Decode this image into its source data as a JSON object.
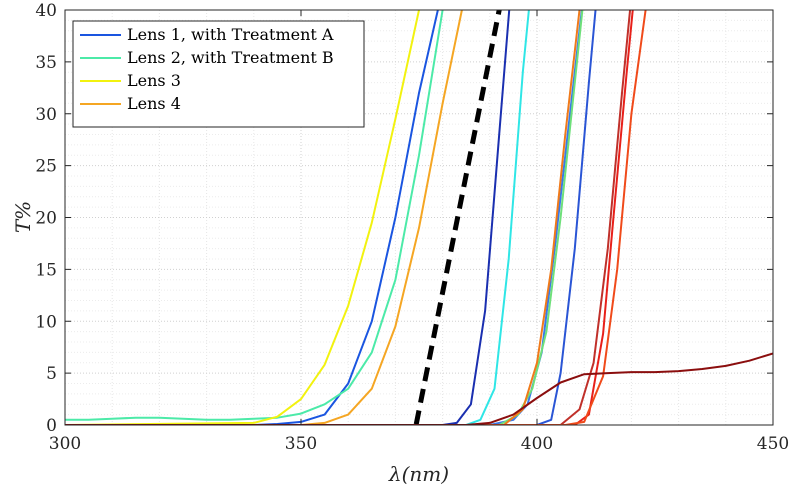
{
  "chart_data": {
    "type": "line",
    "title": "",
    "xlabel": "λ(nm)",
    "ylabel": "T%",
    "xlim": [
      300,
      450
    ],
    "ylim": [
      0,
      40
    ],
    "xticks": [
      300,
      350,
      400,
      450
    ],
    "yticks": [
      0,
      5,
      10,
      15,
      20,
      25,
      30,
      35,
      40
    ],
    "grid": "dotted major and minor",
    "legend_position": "top-left",
    "series": [
      {
        "name": "Lens 1, with Treatment A",
        "color": "#1a55e0",
        "in_legend": true,
        "x": [
          300,
          340,
          345,
          350,
          355,
          360,
          365,
          370,
          375,
          380
        ],
        "y": [
          0,
          0,
          0.1,
          0.3,
          1,
          4,
          10,
          20,
          32,
          42
        ]
      },
      {
        "name": "Lens 2, with Treatment B",
        "color": "#4ceaa8",
        "in_legend": true,
        "x": [
          300,
          305,
          310,
          315,
          320,
          325,
          330,
          335,
          340,
          345,
          350,
          355,
          360,
          365,
          370,
          375,
          380
        ],
        "y": [
          0.5,
          0.5,
          0.6,
          0.7,
          0.7,
          0.6,
          0.5,
          0.5,
          0.6,
          0.7,
          1.1,
          2,
          3.5,
          7,
          14,
          26,
          40
        ]
      },
      {
        "name": "Lens 3",
        "color": "#f2f20f",
        "in_legend": true,
        "x": [
          300,
          340,
          345,
          350,
          355,
          360,
          365,
          370,
          375
        ],
        "y": [
          0,
          0.2,
          0.8,
          2.5,
          5.8,
          11.5,
          19.5,
          29.5,
          40
        ]
      },
      {
        "name": "Lens 4",
        "color": "#f5a623",
        "in_legend": true,
        "x": [
          300,
          350,
          355,
          360,
          365,
          370,
          375,
          380,
          385
        ],
        "y": [
          0,
          0,
          0.2,
          1,
          3.5,
          9.5,
          19,
          31,
          42
        ]
      },
      {
        "name": "Cutoff",
        "color": "#000000",
        "dashed": true,
        "in_legend": false,
        "x": [
          373.5,
          392
        ],
        "y": [
          -2,
          40
        ]
      },
      {
        "name": "Unlabeled 1",
        "color": "#1a2fb0",
        "in_legend": false,
        "x": [
          300,
          380,
          383,
          386,
          389,
          392,
          395
        ],
        "y": [
          0,
          0,
          0.2,
          2,
          11,
          28,
          45
        ]
      },
      {
        "name": "Unlabeled 2",
        "color": "#2fe6e6",
        "in_legend": false,
        "x": [
          300,
          385,
          388,
          391,
          394,
          397,
          400
        ],
        "y": [
          0,
          0,
          0.5,
          3.5,
          16,
          34,
          48
        ]
      },
      {
        "name": "Unlabeled 3",
        "color": "#3a78e8",
        "in_legend": false,
        "x": [
          300,
          390,
          395,
          398,
          401,
          404,
          407,
          410
        ],
        "y": [
          0,
          0,
          0.5,
          2,
          7,
          18,
          30,
          42
        ]
      },
      {
        "name": "Unlabeled 4",
        "color": "#6ee07a",
        "in_legend": false,
        "x": [
          300,
          392,
          396,
          399,
          402,
          405,
          408,
          411
        ],
        "y": [
          0,
          0,
          1,
          3.5,
          9,
          20,
          33,
          46
        ]
      },
      {
        "name": "Unlabeled 5",
        "color": "#f07a1a",
        "in_legend": false,
        "x": [
          300,
          393,
          397,
          400,
          403,
          406,
          409,
          412
        ],
        "y": [
          0,
          0,
          1.5,
          6,
          15,
          28,
          40,
          50
        ]
      },
      {
        "name": "Unlabeled 6",
        "color": "#2a55d5",
        "in_legend": false,
        "x": [
          300,
          400,
          403,
          405,
          408,
          411,
          414
        ],
        "y": [
          0,
          0,
          0.5,
          5,
          17,
          33,
          48
        ]
      },
      {
        "name": "Unlabeled 7",
        "color": "#c0302a",
        "in_legend": false,
        "x": [
          300,
          405,
          409,
          412,
          415,
          418,
          421
        ],
        "y": [
          0,
          0,
          1.5,
          6,
          17,
          32,
          46
        ]
      },
      {
        "name": "Unlabeled 8",
        "color": "#e8201a",
        "in_legend": false,
        "x": [
          300,
          408,
          411,
          414,
          416,
          419,
          422
        ],
        "y": [
          0,
          0,
          1,
          8.8,
          19,
          34,
          48
        ]
      },
      {
        "name": "Unlabeled 9",
        "color": "#f04a1a",
        "in_legend": false,
        "x": [
          300,
          406,
          410,
          414,
          417,
          420,
          423,
          426
        ],
        "y": [
          0,
          0,
          0.3,
          4.7,
          15,
          30,
          40,
          52
        ]
      },
      {
        "name": "Unlabeled 10",
        "color": "#8b0e0e",
        "in_legend": false,
        "x": [
          300,
          385,
          390,
          395,
          400,
          405,
          410,
          415,
          420,
          425,
          430,
          435,
          440,
          445,
          450
        ],
        "y": [
          0,
          0,
          0.2,
          1,
          2.6,
          4.1,
          4.9,
          5.0,
          5.1,
          5.1,
          5.2,
          5.4,
          5.7,
          6.2,
          6.9
        ]
      }
    ]
  }
}
